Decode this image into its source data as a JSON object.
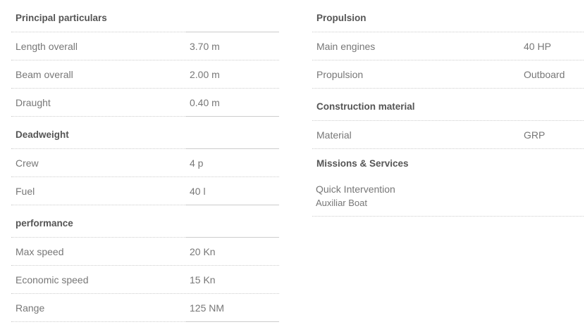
{
  "left": [
    {
      "title": "Principal particulars",
      "rows": [
        {
          "label": "Length overall",
          "value": "3.70 m"
        },
        {
          "label": "Beam overall",
          "value": "2.00 m"
        },
        {
          "label": "Draught",
          "value": "0.40 m"
        }
      ]
    },
    {
      "title": "Deadweight",
      "rows": [
        {
          "label": "Crew",
          "value": "4 p"
        },
        {
          "label": "Fuel",
          "value": "40 l"
        }
      ]
    },
    {
      "title": "performance",
      "rows": [
        {
          "label": "Max speed",
          "value": "20 Kn"
        },
        {
          "label": "Economic speed",
          "value": "15 Kn"
        },
        {
          "label": "Range",
          "value": "125 NM"
        }
      ]
    }
  ],
  "right": [
    {
      "title": "Propulsion",
      "rows": [
        {
          "label": "Main engines",
          "value": "40 HP"
        },
        {
          "label": "Propulsion",
          "value": "Outboard"
        }
      ]
    },
    {
      "title": "Construction material",
      "rows": [
        {
          "label": "Material",
          "value": "GRP"
        }
      ]
    },
    {
      "title": "Missions & Services",
      "items": [
        "Quick Intervention",
        "Auxiliar Boat"
      ]
    }
  ]
}
